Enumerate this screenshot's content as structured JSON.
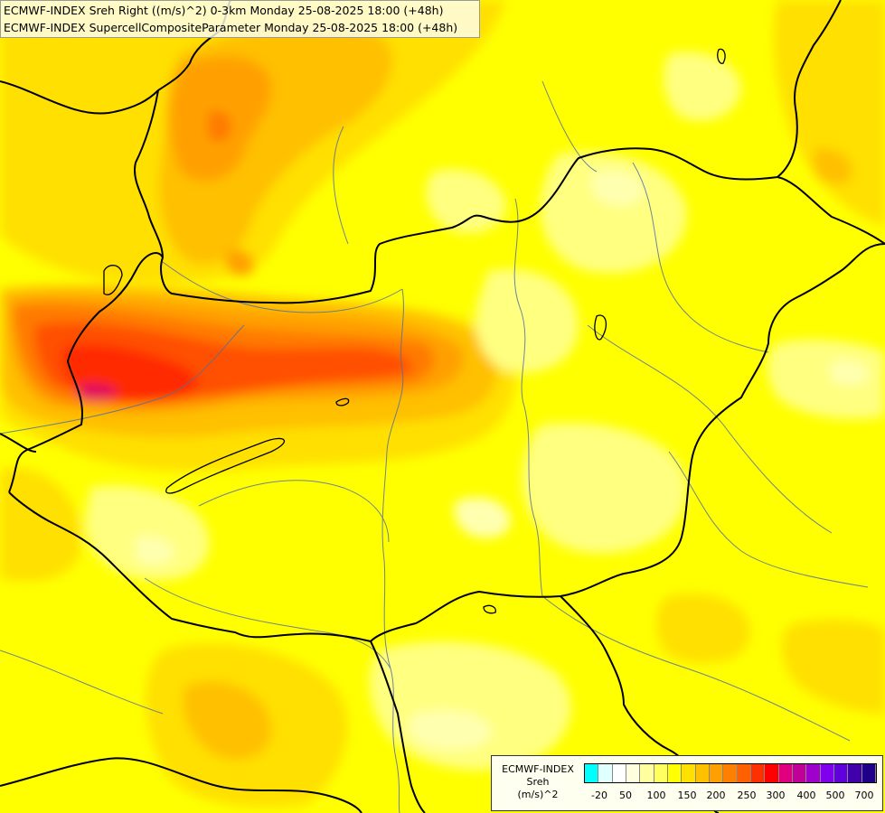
{
  "titles": {
    "line1": "ECMWF-INDEX Sreh Right ((m/s)^2) 0-3km Monday 25-08-2025 18:00 (+48h)",
    "line2": "ECMWF-INDEX SupercellCompositeParameter Monday 25-08-2025 18:00 (+48h)"
  },
  "legend": {
    "line1": "ECMWF-INDEX",
    "line2": "Sreh",
    "line3": "(m/s)^2",
    "colors": [
      "#00ffff",
      "#e0ffff",
      "#ffffff",
      "#ffffe0",
      "#ffffa0",
      "#ffff60",
      "#ffff00",
      "#ffe000",
      "#ffc000",
      "#ffa000",
      "#ff8000",
      "#ff6000",
      "#ff3000",
      "#ff0000",
      "#e0007f",
      "#c00099",
      "#a000cc",
      "#8000ee",
      "#6000dd",
      "#4000aa",
      "#200088"
    ],
    "ticks": [
      "-20",
      "50",
      "100",
      "150",
      "200",
      "250",
      "300",
      "400",
      "500",
      "700"
    ]
  },
  "field_colors": {
    "pale": "#ffffb0",
    "light": "#ffff80",
    "yellow": "#ffff00",
    "gold": "#ffe000",
    "amber": "#ffc000",
    "orange": "#ffa000",
    "dark_orange": "#ff7a00",
    "red_orange": "#ff5000",
    "red": "#ff2a00",
    "magenta": "#e00060"
  }
}
